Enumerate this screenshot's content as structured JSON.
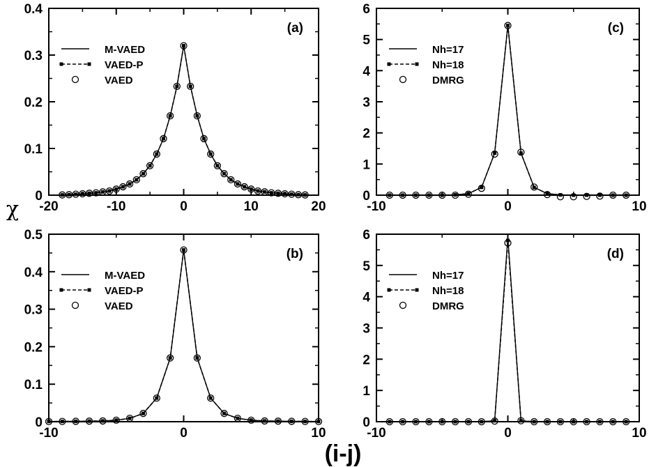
{
  "figure": {
    "xlabel": "(i-j)",
    "ylabel": "χ"
  },
  "chart_data": [
    {
      "panel": "(a)",
      "type": "line",
      "xlim": [
        -20,
        20
      ],
      "ylim": [
        0,
        0.4
      ],
      "xticks": [
        -20,
        -10,
        0,
        10,
        20
      ],
      "yticks": [
        0,
        0.1,
        0.2,
        0.3,
        0.4
      ],
      "legend": [
        "M-VAED",
        "VAED-P",
        "VAED"
      ],
      "legend_position": "top-left",
      "x": [
        -18,
        -17,
        -16,
        -15,
        -14,
        -13,
        -12,
        -11,
        -10,
        -9,
        -8,
        -7,
        -6,
        -5,
        -4,
        -3,
        -2,
        -1,
        0,
        1,
        2,
        3,
        4,
        5,
        6,
        7,
        8,
        9,
        10,
        11,
        12,
        13,
        14,
        15,
        16,
        17,
        18
      ],
      "series": [
        {
          "name": "M-VAED",
          "values": [
            0.0005,
            0.001,
            0.002,
            0.003,
            0.004,
            0.005,
            0.007,
            0.009,
            0.013,
            0.018,
            0.024,
            0.033,
            0.046,
            0.063,
            0.088,
            0.121,
            0.17,
            0.233,
            0.32,
            0.233,
            0.17,
            0.121,
            0.088,
            0.063,
            0.046,
            0.033,
            0.024,
            0.018,
            0.013,
            0.009,
            0.007,
            0.005,
            0.004,
            0.003,
            0.002,
            0.001,
            0.0005
          ]
        },
        {
          "name": "VAED-P",
          "values": [
            0.0005,
            0.001,
            0.002,
            0.003,
            0.004,
            0.005,
            0.007,
            0.009,
            0.013,
            0.018,
            0.024,
            0.033,
            0.046,
            0.063,
            0.088,
            0.121,
            0.17,
            0.233,
            0.32,
            0.233,
            0.17,
            0.121,
            0.088,
            0.063,
            0.046,
            0.033,
            0.024,
            0.018,
            0.013,
            0.009,
            0.007,
            0.005,
            0.004,
            0.003,
            0.002,
            0.001,
            0.0005
          ]
        },
        {
          "name": "VAED",
          "values": [
            0.0005,
            0.001,
            0.002,
            0.003,
            0.004,
            0.005,
            0.007,
            0.009,
            0.013,
            0.018,
            0.024,
            0.033,
            0.046,
            0.063,
            0.088,
            0.121,
            0.17,
            0.233,
            0.32,
            0.233,
            0.17,
            0.121,
            0.088,
            0.063,
            0.046,
            0.033,
            0.024,
            0.018,
            0.013,
            0.009,
            0.007,
            0.005,
            0.004,
            0.003,
            0.002,
            0.001,
            0.0005
          ]
        }
      ]
    },
    {
      "panel": "(b)",
      "type": "line",
      "xlim": [
        -10,
        10
      ],
      "ylim": [
        0,
        0.5
      ],
      "xticks": [
        -10,
        0,
        10
      ],
      "yticks": [
        0,
        0.1,
        0.2,
        0.3,
        0.4,
        0.5
      ],
      "legend": [
        "M-VAED",
        "VAED-P",
        "VAED"
      ],
      "legend_position": "top-left",
      "x": [
        -10,
        -9,
        -8,
        -7,
        -6,
        -5,
        -4,
        -3,
        -2,
        -1,
        0,
        1,
        2,
        3,
        4,
        5,
        6,
        7,
        8,
        9,
        10
      ],
      "series": [
        {
          "name": "M-VAED",
          "values": [
            0.0005,
            0.0007,
            0.001,
            0.0015,
            0.002,
            0.004,
            0.009,
            0.022,
            0.063,
            0.17,
            0.458,
            0.17,
            0.063,
            0.022,
            0.009,
            0.004,
            0.002,
            0.0015,
            0.001,
            0.0007,
            0.0005
          ]
        },
        {
          "name": "VAED-P",
          "values": [
            0.0005,
            0.0007,
            0.001,
            0.0015,
            0.002,
            0.004,
            0.009,
            0.022,
            0.063,
            0.17,
            0.458,
            0.17,
            0.063,
            0.022,
            0.009,
            0.004,
            0.002,
            0.0015,
            0.001,
            0.0007,
            0.0005
          ]
        },
        {
          "name": "VAED",
          "values": [
            0.0005,
            0.0007,
            0.001,
            0.0015,
            0.002,
            0.004,
            0.009,
            0.022,
            0.063,
            0.17,
            0.458,
            0.17,
            0.063,
            0.022,
            0.009,
            0.004,
            0.002,
            0.0015,
            0.001,
            0.0007,
            0.0005
          ]
        }
      ]
    },
    {
      "panel": "(c)",
      "type": "line",
      "xlim": [
        -10,
        10
      ],
      "ylim": [
        0,
        6
      ],
      "xticks": [
        -10,
        0,
        10
      ],
      "yticks": [
        0,
        1,
        2,
        3,
        4,
        5,
        6
      ],
      "legend": [
        "Nh=17",
        "Nh=18",
        "DMRG"
      ],
      "legend_position": "top-left",
      "x": [
        -9,
        -8,
        -7,
        -6,
        -5,
        -4,
        -3,
        -2,
        -1,
        0,
        1,
        2,
        3,
        4,
        5,
        6,
        7,
        8,
        9
      ],
      "series": [
        {
          "name": "Nh=17",
          "values": [
            0.0,
            0.0,
            0.0,
            0.0,
            0.0,
            0.01,
            0.05,
            0.25,
            1.35,
            5.45,
            1.35,
            0.25,
            0.05,
            0.01,
            0.0,
            0.0,
            0.0,
            0.0,
            0.0
          ]
        },
        {
          "name": "Nh=18",
          "values": [
            0.0,
            0.0,
            0.0,
            0.0,
            0.0,
            0.01,
            0.05,
            0.25,
            1.35,
            5.45,
            1.35,
            0.25,
            0.05,
            0.01,
            0.0,
            0.0,
            0.0,
            0.0,
            0.0
          ]
        },
        {
          "name": "DMRG",
          "values": [
            0.0,
            0.0,
            0.0,
            0.0,
            0.0,
            0.0,
            0.03,
            0.22,
            1.32,
            5.45,
            1.38,
            0.26,
            0.02,
            -0.05,
            -0.05,
            -0.04,
            -0.03,
            0.0,
            0.0
          ]
        }
      ]
    },
    {
      "panel": "(d)",
      "type": "line",
      "xlim": [
        -10,
        10
      ],
      "ylim": [
        0,
        6
      ],
      "xticks": [
        -10,
        0,
        10
      ],
      "yticks": [
        0,
        1,
        2,
        3,
        4,
        5,
        6
      ],
      "legend": [
        "Nh=17",
        "Nh=18",
        "DMRG"
      ],
      "legend_position": "top-left",
      "x": [
        -9,
        -8,
        -7,
        -6,
        -5,
        -4,
        -3,
        -2,
        -1,
        0,
        1,
        2,
        3,
        4,
        5,
        6,
        7,
        8,
        9
      ],
      "series": [
        {
          "name": "Nh=17",
          "values": [
            0.0,
            0.0,
            0.0,
            0.0,
            0.0,
            0.0,
            0.0,
            0.0,
            0.03,
            5.9,
            0.03,
            0.0,
            0.0,
            0.0,
            0.0,
            0.0,
            0.0,
            0.0,
            0.0
          ]
        },
        {
          "name": "Nh=18",
          "values": [
            0.0,
            0.0,
            0.0,
            0.0,
            0.0,
            0.0,
            0.0,
            0.0,
            0.03,
            5.8,
            0.03,
            0.0,
            0.0,
            0.0,
            0.0,
            0.0,
            0.0,
            0.0,
            0.0
          ]
        },
        {
          "name": "DMRG",
          "values": [
            0.0,
            0.0,
            0.0,
            0.0,
            0.0,
            0.0,
            0.0,
            0.0,
            0.02,
            5.72,
            0.03,
            0.0,
            0.0,
            0.0,
            0.0,
            0.0,
            0.0,
            0.0,
            0.0
          ]
        }
      ]
    }
  ]
}
